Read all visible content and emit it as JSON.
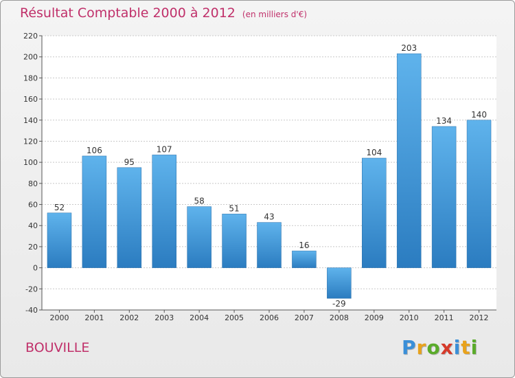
{
  "chart_data": {
    "type": "bar",
    "title": "Résultat Comptable 2000 à 2012",
    "subtitle": "(en milliers d'€)",
    "categories": [
      "2000",
      "2001",
      "2002",
      "2003",
      "2004",
      "2005",
      "2006",
      "2007",
      "2008",
      "2009",
      "2010",
      "2011",
      "2012"
    ],
    "values": [
      52,
      106,
      95,
      107,
      58,
      51,
      43,
      16,
      -29,
      104,
      203,
      134,
      140
    ],
    "data_labels": [
      "52",
      "106",
      "95",
      "107",
      "58",
      "51",
      "43",
      "16",
      "-29",
      "104",
      "203",
      "134",
      "140"
    ],
    "ylim": [
      -40,
      220
    ],
    "yticks": [
      -40,
      -20,
      0,
      20,
      40,
      60,
      80,
      100,
      120,
      140,
      160,
      180,
      200,
      220
    ],
    "grid": true,
    "xlabel": "",
    "ylabel": "",
    "bar_color": "#3f98dc"
  },
  "place": "BOUVILLE",
  "brand": {
    "letters": [
      "P",
      "r",
      "o",
      "x",
      "i",
      "t",
      "i"
    ],
    "colors": [
      "#3a8fd8",
      "#e8a21c",
      "#5aab2a",
      "#d63a2a",
      "#3a8fd8",
      "#e8a21c",
      "#5aab2a"
    ]
  }
}
